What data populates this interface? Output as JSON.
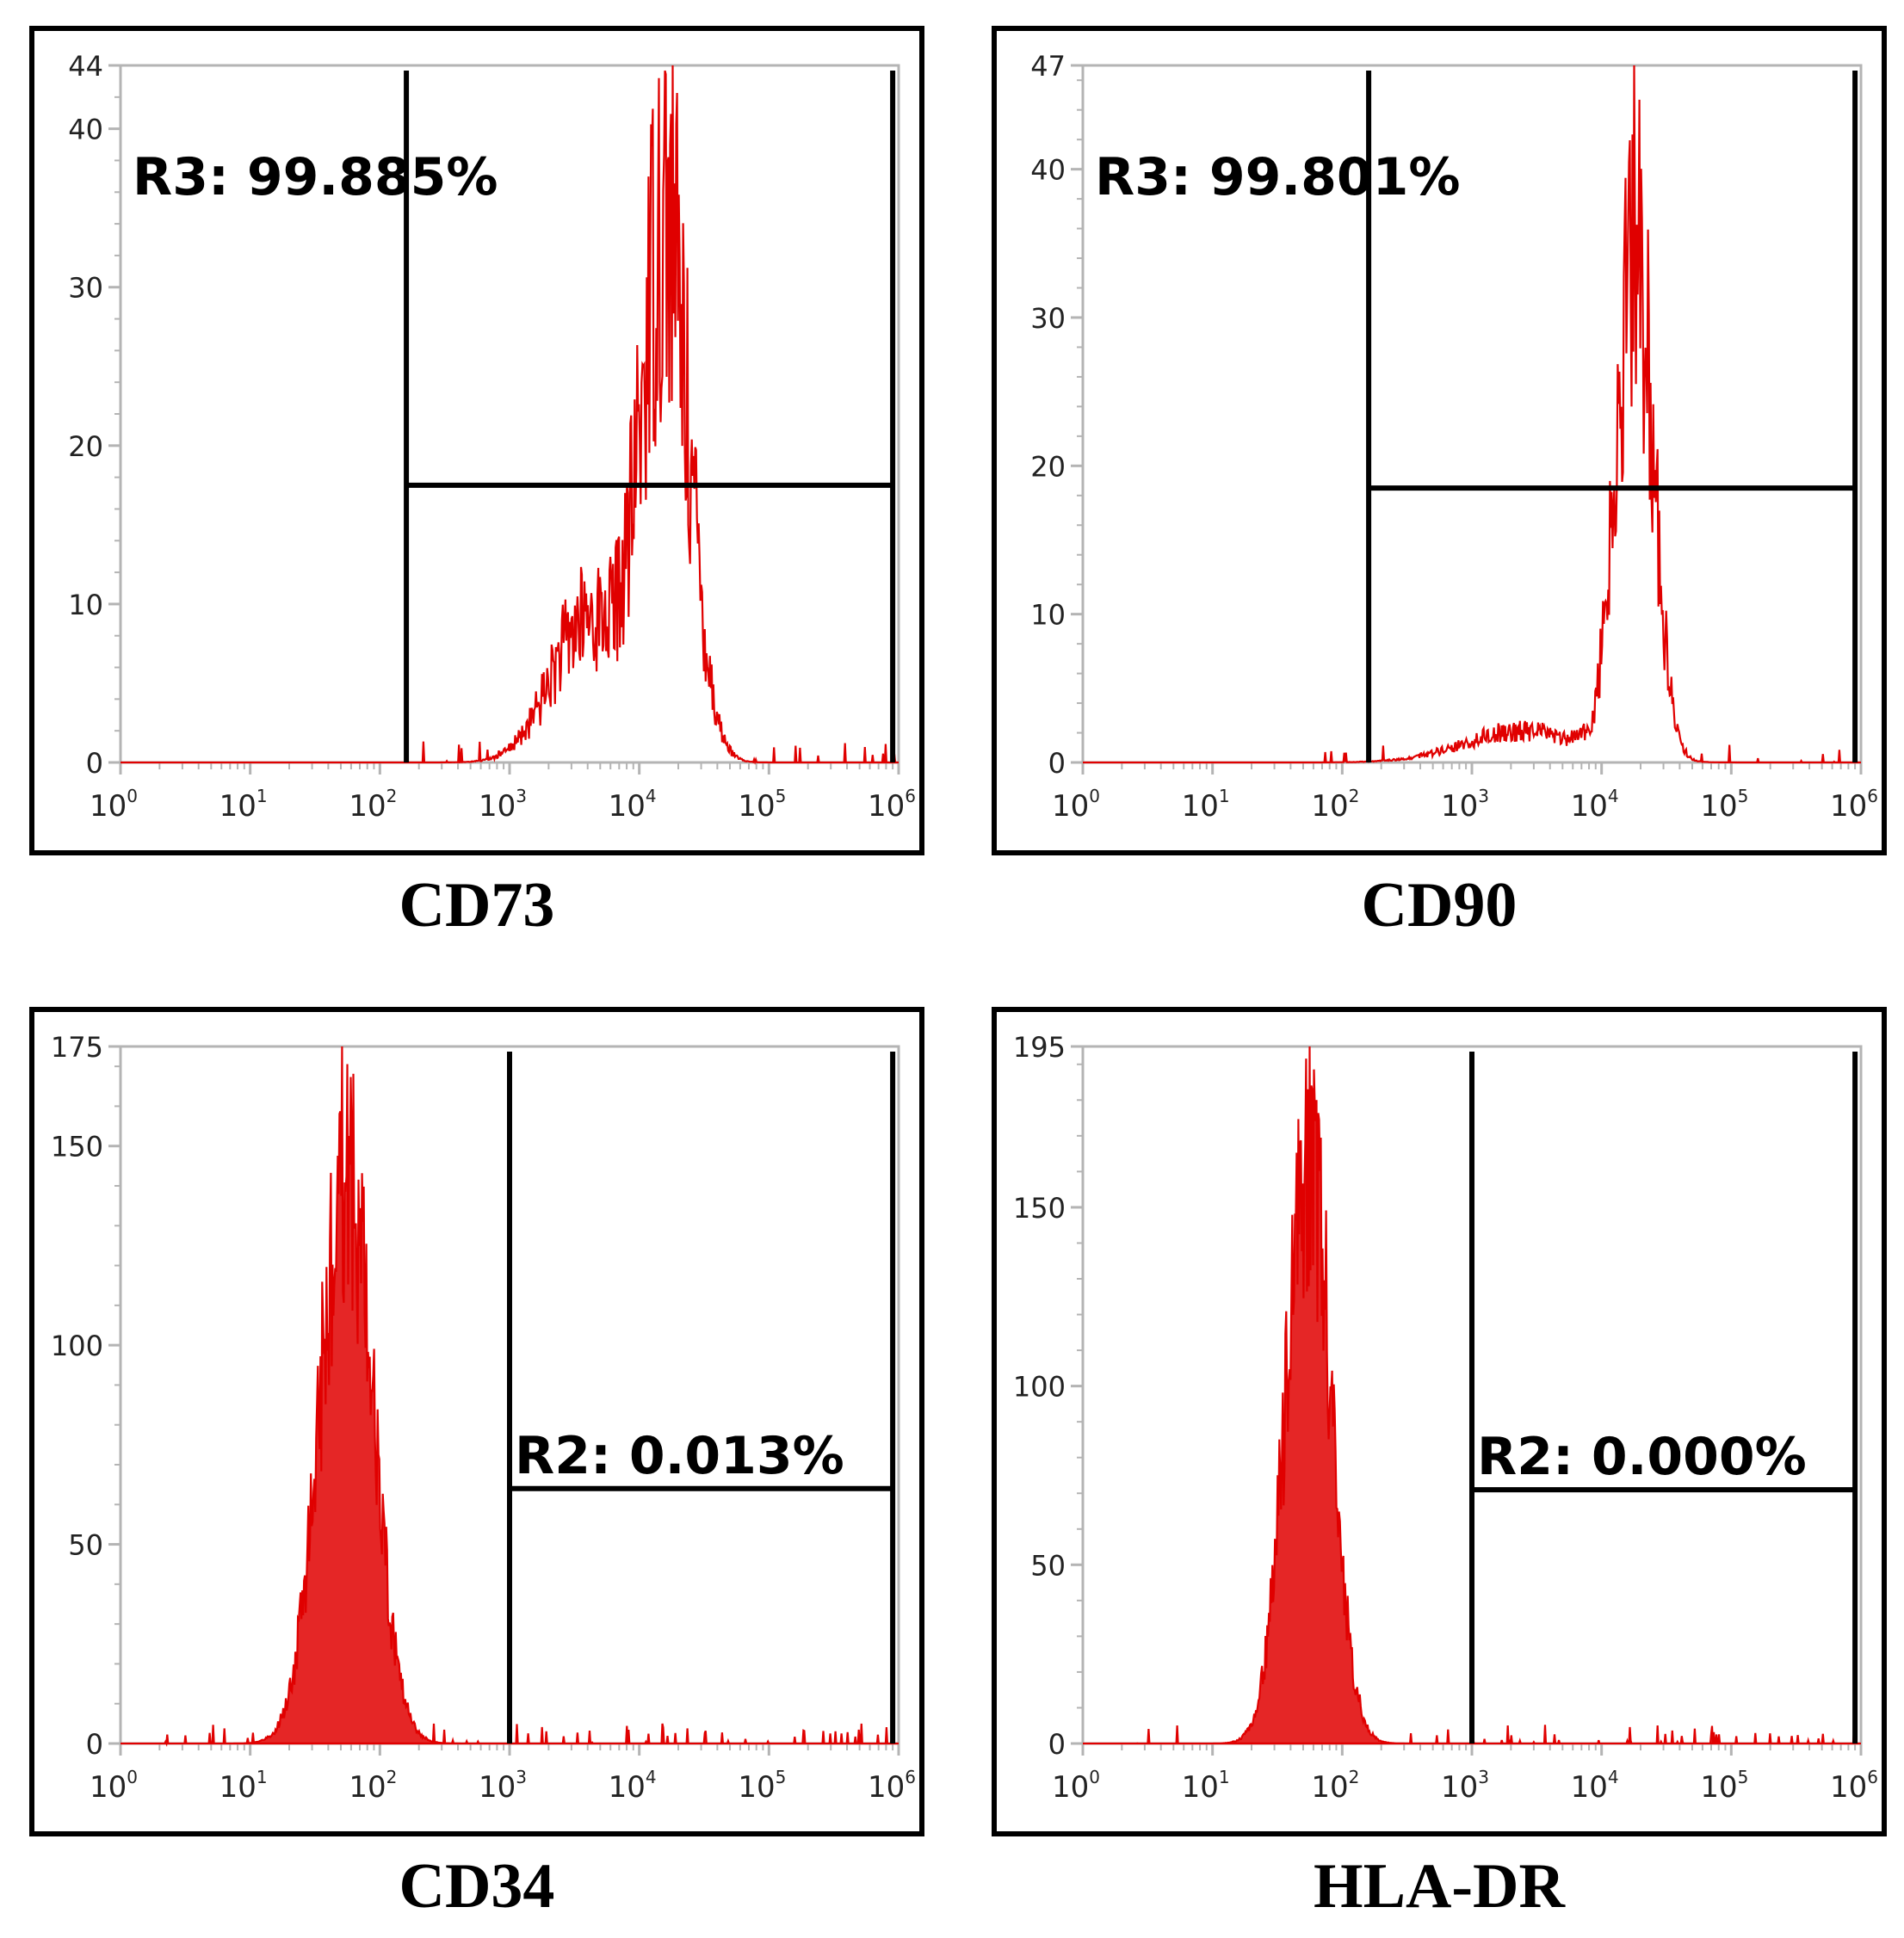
{
  "colors": {
    "histogram": "#e00000",
    "axis": "#b4b4b4",
    "gate": "#000000"
  },
  "chart_data": [
    {
      "type": "area",
      "caption": "CD73",
      "xscale": "log",
      "xlim": [
        1,
        1000000
      ],
      "ylim": [
        0,
        44
      ],
      "yticks": [
        0,
        10,
        20,
        30,
        40,
        44
      ],
      "xtick_labels": [
        [
          "10",
          "0"
        ],
        [
          "10",
          "1"
        ],
        [
          "10",
          "2"
        ],
        [
          "10",
          "3"
        ],
        [
          "10",
          "4"
        ],
        [
          "10",
          "5"
        ],
        [
          "10",
          "6"
        ]
      ],
      "gate": {
        "label": "R3: 99.885%",
        "x_start": 160,
        "x_end": 900000,
        "y": 17.5
      },
      "peaks": [
        {
          "center": 16000,
          "width": 0.18,
          "height": 34
        },
        {
          "center": 4000,
          "width": 0.28,
          "height": 9
        }
      ],
      "peak_max": 44,
      "x_min_signal": 120,
      "noise": 0.4
    },
    {
      "type": "area",
      "caption": "CD90",
      "xscale": "log",
      "xlim": [
        1,
        1000000
      ],
      "ylim": [
        0,
        47
      ],
      "yticks": [
        0,
        10,
        20,
        30,
        40,
        47
      ],
      "xtick_labels": [
        [
          "10",
          "0"
        ],
        [
          "10",
          "1"
        ],
        [
          "10",
          "2"
        ],
        [
          "10",
          "3"
        ],
        [
          "10",
          "4"
        ],
        [
          "10",
          "5"
        ],
        [
          "10",
          "6"
        ]
      ],
      "gate": {
        "label": "R3: 99.801%",
        "x_start": 160,
        "x_end": 900000,
        "y": 18.5
      },
      "peaks": [
        {
          "center": 18000,
          "width": 0.14,
          "height": 40
        },
        {
          "center": 2500,
          "width": 0.45,
          "height": 2.5
        }
      ],
      "peak_max": 47,
      "x_min_signal": 70,
      "noise": 0.35
    },
    {
      "type": "area",
      "caption": "CD34",
      "xscale": "log",
      "xlim": [
        1,
        1000000
      ],
      "ylim": [
        0,
        175
      ],
      "yticks": [
        0,
        50,
        100,
        150,
        175
      ],
      "xtick_labels": [
        [
          "10",
          "0"
        ],
        [
          "10",
          "1"
        ],
        [
          "10",
          "2"
        ],
        [
          "10",
          "3"
        ],
        [
          "10",
          "4"
        ],
        [
          "10",
          "5"
        ],
        [
          "10",
          "6"
        ]
      ],
      "gate": {
        "label": "R2: 0.013%",
        "x_start": 1000,
        "x_end": 900000,
        "y": 64
      },
      "peaks": [
        {
          "center": 55,
          "width": 0.2,
          "height": 150
        }
      ],
      "peak_max": 175,
      "x_min_signal": 2,
      "noise": 0.25
    },
    {
      "type": "area",
      "caption": "HLA-DR",
      "xscale": "log",
      "xlim": [
        1,
        1000000
      ],
      "ylim": [
        0,
        195
      ],
      "yticks": [
        0,
        50,
        100,
        150,
        195
      ],
      "xtick_labels": [
        [
          "10",
          "0"
        ],
        [
          "10",
          "1"
        ],
        [
          "10",
          "2"
        ],
        [
          "10",
          "3"
        ],
        [
          "10",
          "4"
        ],
        [
          "10",
          "5"
        ],
        [
          "10",
          "6"
        ]
      ],
      "gate": {
        "label": "R2: 0.000%",
        "x_start": 1000,
        "x_end": 900000,
        "y": 71
      },
      "peaks": [
        {
          "center": 55,
          "width": 0.17,
          "height": 178
        }
      ],
      "peak_max": 195,
      "x_min_signal": 2,
      "noise": 0.25
    }
  ]
}
